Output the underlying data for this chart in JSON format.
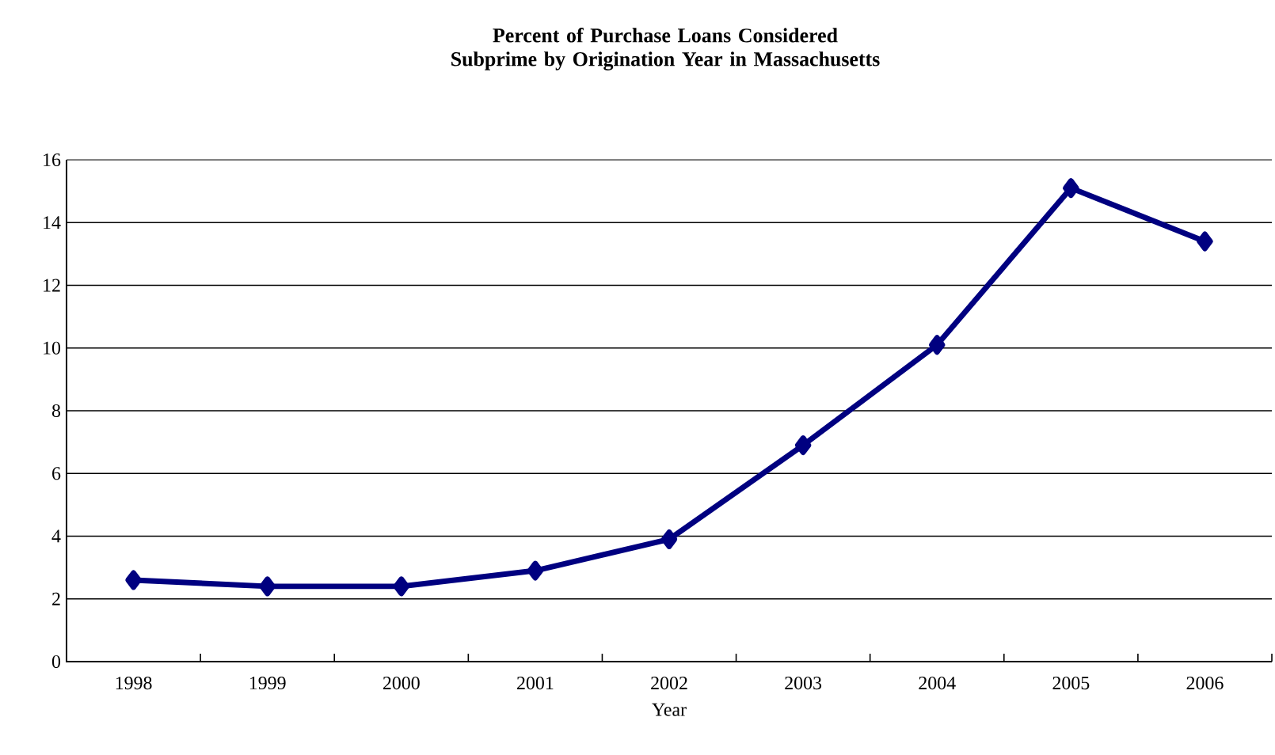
{
  "chart_data": {
    "type": "line",
    "title": "Percent of Purchase Loans Considered Subprime by Origination Year in Massachusetts",
    "xlabel": "Year",
    "categories": [
      "1998",
      "1999",
      "2000",
      "2001",
      "2002",
      "2003",
      "2004",
      "2005",
      "2006"
    ],
    "series": [
      {
        "color": "#000080",
        "values": [
          2.6,
          2.4,
          2.4,
          2.9,
          3.9,
          6.9,
          10.1,
          15.1,
          13.4
        ]
      }
    ],
    "ylim": [
      0,
      16
    ],
    "yticks": [
      0,
      2,
      4,
      6,
      8,
      10,
      12,
      14,
      16
    ],
    "grid": "y",
    "marker": "diamond",
    "line_style": "solid"
  }
}
